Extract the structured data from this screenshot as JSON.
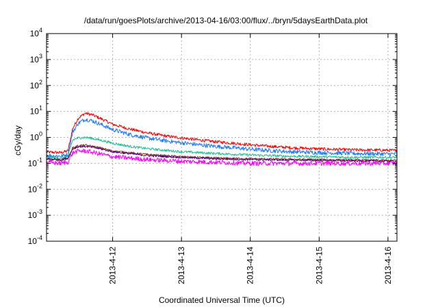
{
  "chart_data": {
    "type": "line",
    "title": "/data/run/goesPlots/archive/2013-04-16/03:00/flux/../bryn/5daysEarthData.plot",
    "xlabel": "Coordinated Universal Time (UTC)",
    "ylabel": "cGy/day",
    "yscale": "log",
    "ylim": [
      0.0001,
      10000
    ],
    "y_tick_labels": [
      {
        "base": "10",
        "exp": "-4",
        "value": 0.0001
      },
      {
        "base": "10",
        "exp": "-3",
        "value": 0.001
      },
      {
        "base": "10",
        "exp": "-2",
        "value": 0.01
      },
      {
        "base": "10",
        "exp": "-1",
        "value": 0.1
      },
      {
        "base": "10",
        "exp": "0",
        "value": 1
      },
      {
        "base": "10",
        "exp": "1",
        "value": 10
      },
      {
        "base": "10",
        "exp": "2",
        "value": 100
      },
      {
        "base": "10",
        "exp": "3",
        "value": 1000
      },
      {
        "base": "10",
        "exp": "4",
        "value": 10000
      }
    ],
    "xlim": [
      "2013-04-11 01:00",
      "2013-04-16 03:00"
    ],
    "x_ticks": [
      {
        "label": "2013-4-12",
        "day": 1.0
      },
      {
        "label": "2013-4-13",
        "day": 2.0
      },
      {
        "label": "2013-4-14",
        "day": 3.0
      },
      {
        "label": "2013-4-15",
        "day": 4.0
      },
      {
        "label": "2013-4-16",
        "day": 5.0
      }
    ],
    "grid": true,
    "legend": "none",
    "x_unit": "days since 2013-04-11 00:00 UTC",
    "series": [
      {
        "color": "#ff0000",
        "noise": 0.06,
        "points": [
          [
            0.04,
            0.27
          ],
          [
            0.25,
            0.26
          ],
          [
            0.35,
            0.3
          ],
          [
            0.42,
            2.2
          ],
          [
            0.5,
            5.5
          ],
          [
            0.6,
            8.5
          ],
          [
            0.7,
            7.5
          ],
          [
            0.85,
            5.0
          ],
          [
            1.0,
            3.2
          ],
          [
            1.25,
            2.1
          ],
          [
            1.5,
            1.5
          ],
          [
            1.75,
            1.15
          ],
          [
            2.0,
            0.95
          ],
          [
            2.25,
            0.8
          ],
          [
            2.5,
            0.68
          ],
          [
            2.75,
            0.6
          ],
          [
            3.0,
            0.52
          ],
          [
            3.3,
            0.45
          ],
          [
            3.6,
            0.4
          ],
          [
            4.0,
            0.36
          ],
          [
            4.5,
            0.33
          ],
          [
            5.0,
            0.32
          ],
          [
            5.13,
            0.31
          ]
        ]
      },
      {
        "color": "#1f77ff",
        "noise": 0.08,
        "points": [
          [
            0.04,
            0.2
          ],
          [
            0.25,
            0.19
          ],
          [
            0.35,
            0.22
          ],
          [
            0.42,
            1.6
          ],
          [
            0.5,
            3.5
          ],
          [
            0.6,
            5.0
          ],
          [
            0.7,
            4.4
          ],
          [
            0.85,
            3.0
          ],
          [
            1.0,
            2.0
          ],
          [
            1.25,
            1.3
          ],
          [
            1.5,
            0.95
          ],
          [
            1.75,
            0.75
          ],
          [
            2.0,
            0.62
          ],
          [
            2.25,
            0.52
          ],
          [
            2.5,
            0.45
          ],
          [
            2.75,
            0.4
          ],
          [
            3.0,
            0.35
          ],
          [
            3.3,
            0.31
          ],
          [
            3.6,
            0.28
          ],
          [
            4.0,
            0.26
          ],
          [
            4.5,
            0.24
          ],
          [
            5.0,
            0.23
          ],
          [
            5.13,
            0.23
          ]
        ]
      },
      {
        "color": "#1fbf8f",
        "noise": 0.05,
        "points": [
          [
            0.04,
            0.17
          ],
          [
            0.25,
            0.16
          ],
          [
            0.35,
            0.18
          ],
          [
            0.42,
            0.8
          ],
          [
            0.5,
            0.95
          ],
          [
            0.6,
            1.0
          ],
          [
            0.7,
            0.92
          ],
          [
            0.85,
            0.75
          ],
          [
            1.0,
            0.6
          ],
          [
            1.25,
            0.45
          ],
          [
            1.5,
            0.37
          ],
          [
            1.75,
            0.32
          ],
          [
            2.0,
            0.28
          ],
          [
            2.5,
            0.24
          ],
          [
            3.0,
            0.21
          ],
          [
            3.5,
            0.19
          ],
          [
            4.0,
            0.18
          ],
          [
            4.5,
            0.17
          ],
          [
            5.0,
            0.17
          ],
          [
            5.13,
            0.17
          ]
        ]
      },
      {
        "color": "#8b3a1a",
        "noise": 0.04,
        "points": [
          [
            0.04,
            0.14
          ],
          [
            0.25,
            0.13
          ],
          [
            0.35,
            0.15
          ],
          [
            0.42,
            0.4
          ],
          [
            0.5,
            0.48
          ],
          [
            0.6,
            0.5
          ],
          [
            0.7,
            0.46
          ],
          [
            0.85,
            0.38
          ],
          [
            1.0,
            0.3
          ],
          [
            1.5,
            0.22
          ],
          [
            2.0,
            0.18
          ],
          [
            2.5,
            0.16
          ],
          [
            3.0,
            0.15
          ],
          [
            4.0,
            0.14
          ],
          [
            5.0,
            0.13
          ],
          [
            5.13,
            0.13
          ]
        ]
      },
      {
        "color": "#4b0082",
        "noise": 0.04,
        "points": [
          [
            0.04,
            0.15
          ],
          [
            0.25,
            0.14
          ],
          [
            0.35,
            0.16
          ],
          [
            0.42,
            0.36
          ],
          [
            0.5,
            0.44
          ],
          [
            0.6,
            0.45
          ],
          [
            0.7,
            0.42
          ],
          [
            0.85,
            0.35
          ],
          [
            1.0,
            0.28
          ],
          [
            1.5,
            0.2
          ],
          [
            2.0,
            0.17
          ],
          [
            2.5,
            0.15
          ],
          [
            3.0,
            0.14
          ],
          [
            4.0,
            0.13
          ],
          [
            5.0,
            0.12
          ],
          [
            5.13,
            0.12
          ]
        ]
      },
      {
        "color": "#ff00ff",
        "noise": 0.09,
        "points": [
          [
            0.04,
            0.11
          ],
          [
            0.25,
            0.1
          ],
          [
            0.35,
            0.11
          ],
          [
            0.42,
            0.25
          ],
          [
            0.5,
            0.3
          ],
          [
            0.6,
            0.3
          ],
          [
            0.7,
            0.27
          ],
          [
            0.85,
            0.22
          ],
          [
            1.0,
            0.18
          ],
          [
            1.5,
            0.14
          ],
          [
            2.0,
            0.12
          ],
          [
            2.5,
            0.11
          ],
          [
            3.0,
            0.1
          ],
          [
            4.0,
            0.1
          ],
          [
            5.0,
            0.1
          ],
          [
            5.13,
            0.1
          ]
        ]
      }
    ]
  }
}
